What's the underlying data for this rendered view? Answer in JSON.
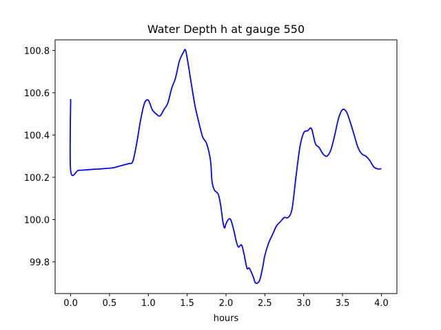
{
  "chart_data": {
    "type": "line",
    "title": "Water Depth h at gauge 550",
    "xlabel": "hours",
    "ylabel": "",
    "xlim": [
      -0.2,
      4.2
    ],
    "ylim": [
      99.65,
      100.85
    ],
    "x_ticks": [
      {
        "value": 0.0,
        "label": "0.0"
      },
      {
        "value": 0.5,
        "label": "0.5"
      },
      {
        "value": 1.0,
        "label": "1.0"
      },
      {
        "value": 1.5,
        "label": "1.5"
      },
      {
        "value": 2.0,
        "label": "2.0"
      },
      {
        "value": 2.5,
        "label": "2.5"
      },
      {
        "value": 3.0,
        "label": "3.0"
      },
      {
        "value": 3.5,
        "label": "3.5"
      },
      {
        "value": 4.0,
        "label": "4.0"
      }
    ],
    "y_ticks": [
      {
        "value": 99.8,
        "label": "99.8"
      },
      {
        "value": 100.0,
        "label": "100.0"
      },
      {
        "value": 100.2,
        "label": "100.2"
      },
      {
        "value": 100.4,
        "label": "100.4"
      },
      {
        "value": 100.6,
        "label": "100.6"
      },
      {
        "value": 100.8,
        "label": "100.8"
      }
    ],
    "grid": false,
    "series": [
      {
        "color": "#0000ff",
        "x": [
          0.0,
          0.0,
          0.1,
          0.2,
          0.3,
          0.4,
          0.5,
          0.55,
          0.6,
          0.7,
          0.75,
          0.8,
          0.85,
          0.9,
          0.95,
          1.0,
          1.05,
          1.1,
          1.15,
          1.2,
          1.25,
          1.3,
          1.35,
          1.4,
          1.45,
          1.48,
          1.52,
          1.55,
          1.6,
          1.65,
          1.7,
          1.75,
          1.8,
          1.82,
          1.85,
          1.9,
          1.93,
          1.96,
          1.98,
          2.0,
          2.03,
          2.06,
          2.1,
          2.13,
          2.16,
          2.2,
          2.23,
          2.27,
          2.3,
          2.35,
          2.38,
          2.43,
          2.47,
          2.5,
          2.55,
          2.6,
          2.65,
          2.7,
          2.75,
          2.8,
          2.85,
          2.9,
          2.95,
          3.0,
          3.05,
          3.1,
          3.15,
          3.2,
          3.25,
          3.3,
          3.35,
          3.4,
          3.45,
          3.5,
          3.55,
          3.6,
          3.65,
          3.7,
          3.75,
          3.8,
          3.85,
          3.9,
          3.95,
          4.0
        ],
        "y": [
          100.57,
          100.232,
          100.233,
          100.235,
          100.238,
          100.24,
          100.243,
          100.245,
          100.25,
          100.26,
          100.265,
          100.275,
          100.36,
          100.47,
          100.55,
          100.565,
          100.52,
          100.5,
          100.49,
          100.52,
          100.55,
          100.62,
          100.67,
          100.75,
          100.79,
          100.8,
          100.72,
          100.65,
          100.54,
          100.46,
          100.39,
          100.36,
          100.28,
          100.18,
          100.14,
          100.12,
          100.07,
          99.99,
          99.96,
          99.98,
          100.0,
          100.0,
          99.95,
          99.9,
          99.87,
          99.88,
          99.84,
          99.77,
          99.77,
          99.73,
          99.7,
          99.71,
          99.77,
          99.83,
          99.89,
          99.93,
          99.97,
          99.99,
          100.01,
          100.01,
          100.05,
          100.2,
          100.34,
          100.41,
          100.42,
          100.43,
          100.36,
          100.34,
          100.31,
          100.3,
          100.33,
          100.4,
          100.48,
          100.52,
          100.51,
          100.46,
          100.4,
          100.34,
          100.31,
          100.3,
          100.28,
          100.25,
          100.24,
          100.24
        ]
      }
    ]
  }
}
